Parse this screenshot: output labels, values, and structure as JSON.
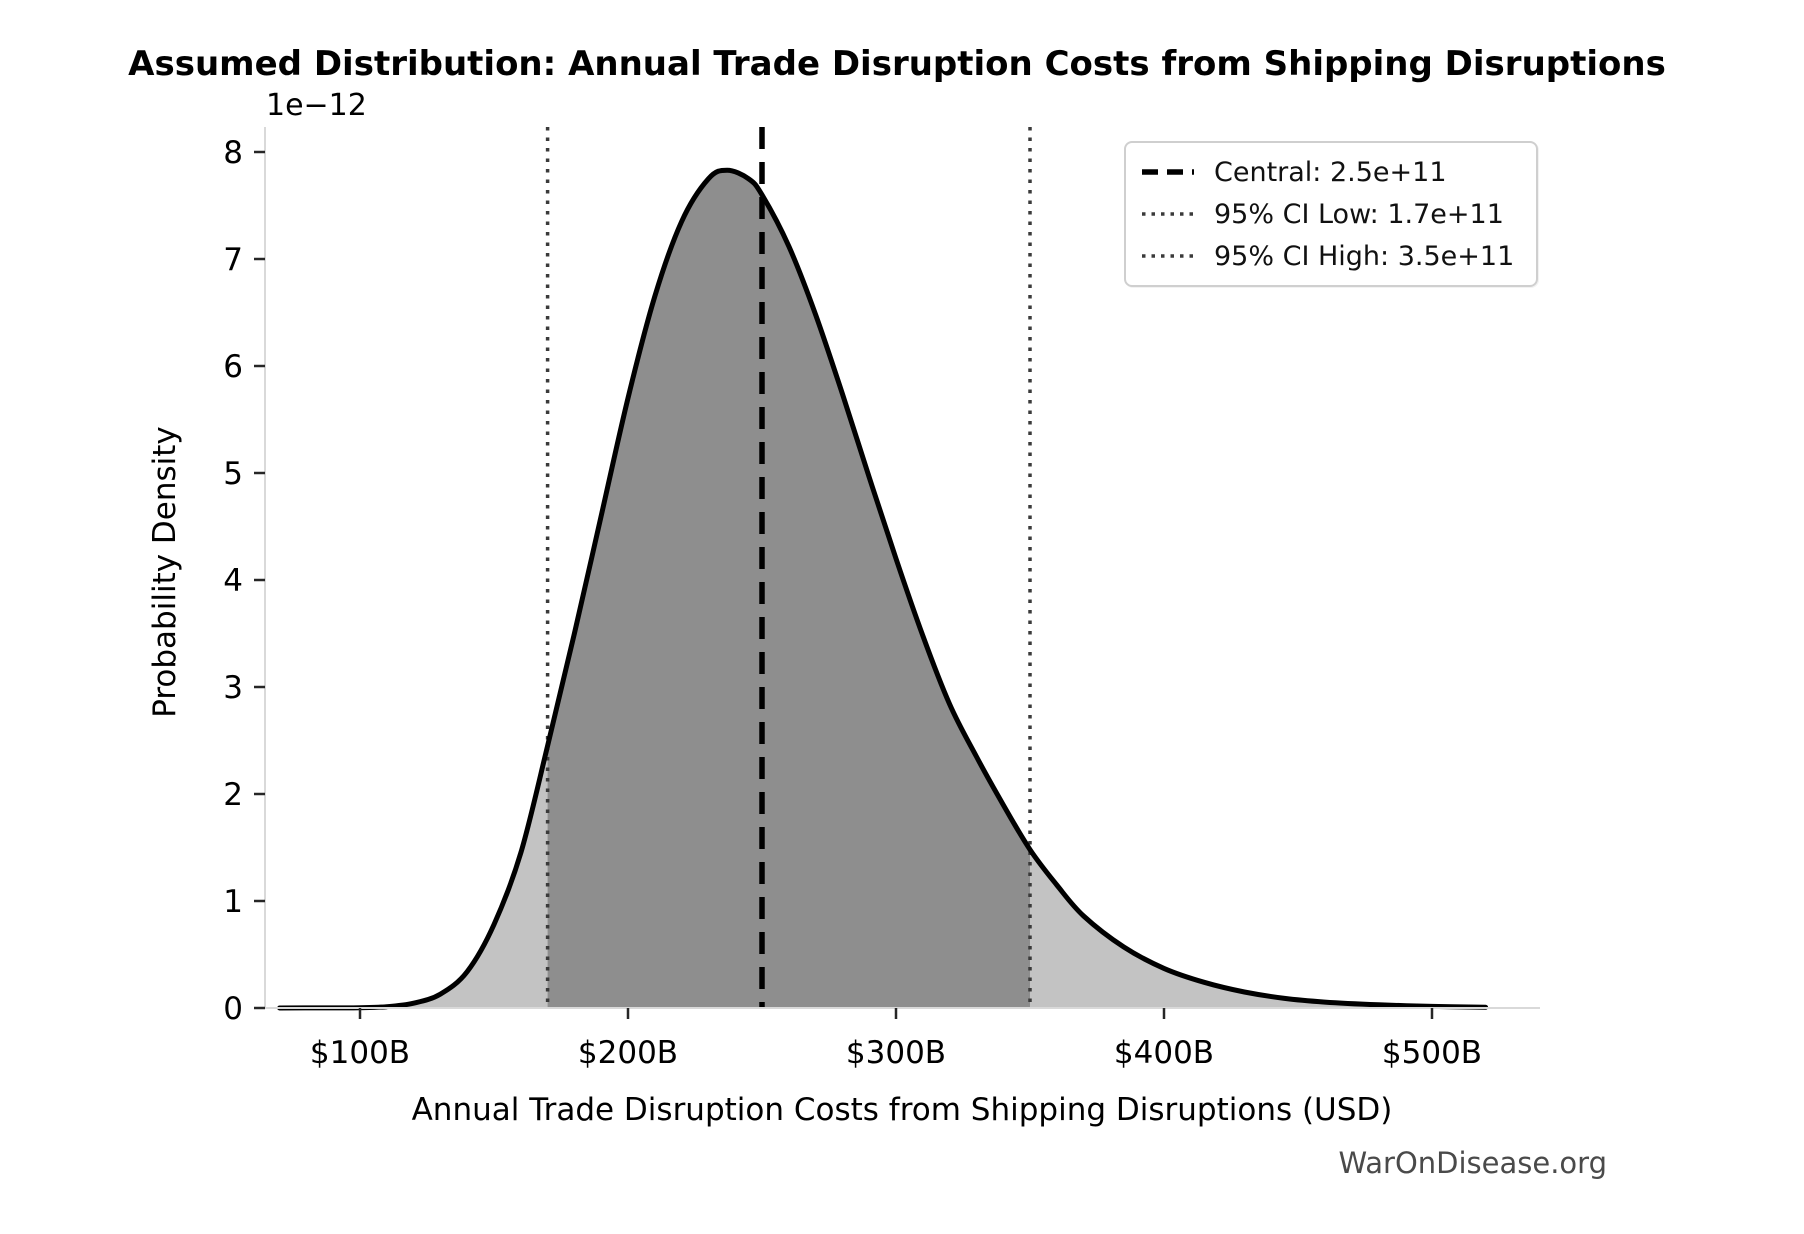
{
  "chart_data": {
    "type": "area",
    "title": "Assumed Distribution: Annual Trade Disruption Costs from Shipping Disruptions",
    "xlabel": "Annual Trade Disruption Costs from Shipping Disruptions (USD)",
    "ylabel": "Probability Density",
    "y_offset_label": "1e−12",
    "x_tick_values": [
      100,
      200,
      300,
      400,
      500
    ],
    "x_tick_labels": [
      "$100B",
      "$200B",
      "$300B",
      "$400B",
      "$500B"
    ],
    "y_tick_values": [
      0,
      1,
      2,
      3,
      4,
      5,
      6,
      7,
      8
    ],
    "y_tick_labels": [
      "0",
      "1",
      "2",
      "3",
      "4",
      "5",
      "6",
      "7",
      "8"
    ],
    "xlim_billions": [
      64.6,
      540.3
    ],
    "ylim_1e12": [
      0,
      8.23
    ],
    "grid": false,
    "legend_position": "upper right",
    "central_billions": 250,
    "ci_low_billions": 170,
    "ci_high_billions": 350,
    "legend": {
      "items": [
        {
          "label": "Central: 2.5e+11",
          "style": "dashed-black"
        },
        {
          "label": "95% CI Low: 1.7e+11",
          "style": "dotted-gray"
        },
        {
          "label": "95% CI High: 3.5e+11",
          "style": "dotted-gray"
        }
      ]
    },
    "curve": {
      "x_billions": [
        70,
        85,
        100,
        110,
        120,
        130,
        140,
        150,
        160,
        170,
        180,
        190,
        200,
        210,
        220,
        230,
        237,
        245,
        250,
        260,
        270,
        280,
        290,
        300,
        310,
        320,
        330,
        340,
        350,
        360,
        370,
        385,
        400,
        415,
        430,
        445,
        460,
        480,
        500,
        520
      ],
      "density_1e12": [
        0,
        0.001,
        0.003,
        0.012,
        0.045,
        0.13,
        0.34,
        0.78,
        1.45,
        2.45,
        3.5,
        4.6,
        5.7,
        6.65,
        7.35,
        7.75,
        7.83,
        7.75,
        7.6,
        7.12,
        6.48,
        5.74,
        4.96,
        4.2,
        3.48,
        2.84,
        2.35,
        1.9,
        1.48,
        1.15,
        0.86,
        0.57,
        0.37,
        0.24,
        0.15,
        0.09,
        0.055,
        0.03,
        0.015,
        0.007
      ]
    },
    "colors": {
      "curve": "#000000",
      "fill_light": "#c3c3c3",
      "fill_dark": "#8e8e8e",
      "central_line": "#000000",
      "ci_line": "#3a3a3a",
      "spine": "#d9d9d9",
      "tick": "#262626",
      "text": "#000000",
      "watermark": "#4a4a4a"
    },
    "watermark": "WarOnDisease.org"
  }
}
